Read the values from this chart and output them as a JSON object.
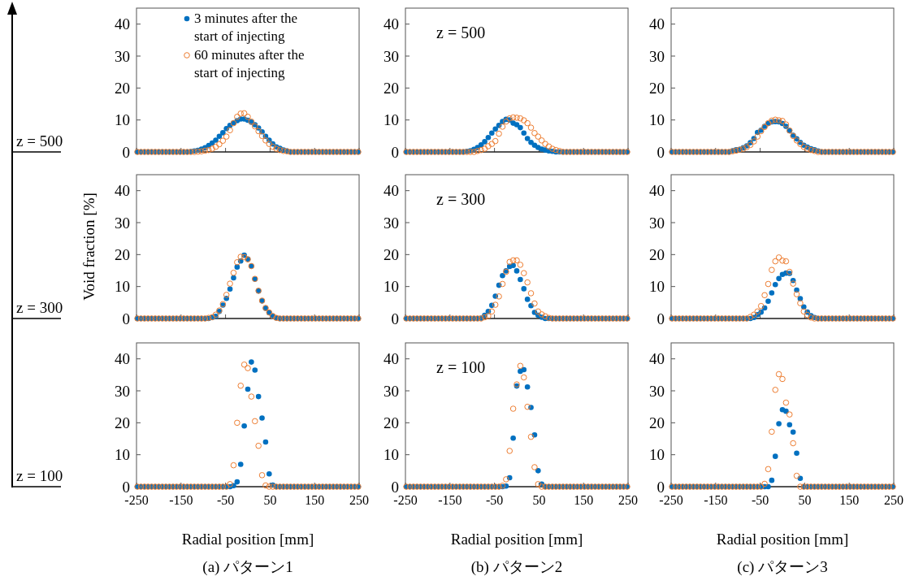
{
  "chart_data": [
    {
      "type": "scatter",
      "xlim": [
        -250,
        250
      ],
      "ylim": [
        0,
        45
      ],
      "xticks": [
        -250,
        -150,
        -50,
        50,
        150,
        250
      ],
      "yticks": [
        0,
        10,
        20,
        30,
        40
      ],
      "tick_labels": "y",
      "marker": "circle",
      "legend": "top",
      "annotations": [
        "z = 500"
      ],
      "x": [
        -248,
        -240,
        -232,
        -224,
        -216,
        -208,
        -200,
        -192,
        -184,
        -176,
        -168,
        -160,
        -152,
        -144,
        -136,
        -128,
        -120,
        -112,
        -104,
        -96,
        -88,
        -80,
        -72,
        -64,
        -56,
        -48,
        -40,
        -32,
        -24,
        -16,
        -8,
        0,
        8,
        16,
        24,
        32,
        40,
        48,
        56,
        64,
        72,
        80,
        88,
        96,
        104,
        112,
        120,
        128,
        136,
        144,
        152,
        160,
        168,
        176,
        184,
        192,
        200,
        208,
        216,
        224,
        232,
        240,
        248
      ],
      "series": [
        {
          "name": "3 minutes after the start of injecting",
          "color": "#0070c0",
          "values": [
            0,
            0,
            0,
            0,
            0,
            0,
            0,
            0,
            0,
            0,
            0,
            0,
            0,
            0,
            0,
            0.1,
            0.3,
            0.5,
            0.9,
            1.3,
            2.0,
            2.8,
            3.7,
            4.9,
            6.0,
            7.3,
            8.3,
            9.1,
            9.8,
            10.3,
            10.3,
            9.9,
            9.3,
            8.5,
            7.5,
            6.3,
            4.9,
            3.7,
            2.5,
            1.6,
            1.1,
            0.6,
            0.3,
            0,
            0,
            0,
            0,
            0,
            0,
            0,
            0,
            0,
            0,
            0,
            0,
            0,
            0,
            0,
            0,
            0,
            0,
            0,
            0
          ]
        },
        {
          "name": "60 minutes after the start of injecting",
          "color": "#ed7d31",
          "values": [
            0,
            0,
            0,
            0,
            0,
            0,
            0,
            0,
            0,
            0,
            0,
            0,
            0,
            0,
            0,
            0,
            0,
            0.1,
            0.2,
            0.4,
            0.6,
            1.0,
            1.6,
            2.4,
            3.5,
            4.8,
            6.8,
            9.0,
            11.0,
            12.0,
            12.1,
            11.0,
            9.5,
            8.0,
            6.5,
            5.0,
            3.6,
            2.5,
            1.6,
            1.0,
            0.6,
            0.3,
            0.2,
            0,
            0,
            0,
            0,
            0,
            0,
            0,
            0,
            0,
            0,
            0,
            0,
            0,
            0,
            0,
            0,
            0,
            0,
            0,
            0
          ]
        }
      ]
    },
    {
      "type": "scatter",
      "xlim": [
        -250,
        250
      ],
      "ylim": [
        0,
        45
      ],
      "xticks": [
        -250,
        -150,
        -50,
        50,
        150,
        250
      ],
      "yticks": [
        0,
        10,
        20,
        30,
        40
      ],
      "tick_labels": "y",
      "marker": "circle",
      "annotations": [
        "z = 500"
      ],
      "x": [
        -248,
        -240,
        -232,
        -224,
        -216,
        -208,
        -200,
        -192,
        -184,
        -176,
        -168,
        -160,
        -152,
        -144,
        -136,
        -128,
        -120,
        -112,
        -104,
        -96,
        -88,
        -80,
        -72,
        -64,
        -56,
        -48,
        -40,
        -32,
        -24,
        -16,
        -8,
        0,
        8,
        16,
        24,
        32,
        40,
        48,
        56,
        64,
        72,
        80,
        88,
        96,
        104,
        112,
        120,
        128,
        136,
        144,
        152,
        160,
        168,
        176,
        184,
        192,
        200,
        208,
        216,
        224,
        232,
        240,
        248
      ],
      "series": [
        {
          "color": "#0070c0",
          "values": [
            0,
            0,
            0,
            0,
            0,
            0,
            0,
            0,
            0,
            0,
            0,
            0,
            0,
            0,
            0,
            0,
            0,
            0.2,
            0.4,
            0.8,
            1.4,
            2.2,
            3.2,
            4.5,
            5.9,
            7.2,
            8.3,
            9.5,
            10.2,
            10.0,
            9.0,
            8.5,
            7.6,
            5.9,
            4.2,
            3.0,
            2.1,
            1.4,
            0.9,
            0.6,
            0.3,
            0.2,
            0,
            0,
            0,
            0,
            0,
            0,
            0,
            0,
            0,
            0,
            0,
            0,
            0,
            0,
            0,
            0,
            0,
            0,
            0,
            0,
            0
          ]
        },
        {
          "color": "#ed7d31",
          "values": [
            0,
            0,
            0,
            0,
            0,
            0,
            0,
            0,
            0,
            0,
            0,
            0,
            0,
            0,
            0,
            0,
            0,
            0,
            0,
            0,
            0.3,
            0.6,
            1.0,
            1.8,
            2.5,
            3.4,
            5.7,
            7.9,
            9.5,
            10.5,
            10.8,
            10.7,
            10.5,
            9.9,
            9.0,
            7.6,
            5.9,
            4.8,
            3.6,
            2.5,
            1.7,
            1.0,
            0.6,
            0.3,
            0,
            0,
            0,
            0,
            0,
            0,
            0,
            0,
            0,
            0,
            0,
            0,
            0,
            0,
            0,
            0,
            0,
            0,
            0
          ]
        }
      ]
    },
    {
      "type": "scatter",
      "xlim": [
        -250,
        250
      ],
      "ylim": [
        0,
        45
      ],
      "xticks": [
        -250,
        -150,
        -50,
        50,
        150,
        250
      ],
      "yticks": [
        0,
        10,
        20,
        30,
        40
      ],
      "tick_labels": "y",
      "marker": "circle",
      "x": [
        -248,
        -240,
        -232,
        -224,
        -216,
        -208,
        -200,
        -192,
        -184,
        -176,
        -168,
        -160,
        -152,
        -144,
        -136,
        -128,
        -120,
        -112,
        -104,
        -96,
        -88,
        -80,
        -72,
        -64,
        -56,
        -48,
        -40,
        -32,
        -24,
        -16,
        -8,
        0,
        8,
        16,
        24,
        32,
        40,
        48,
        56,
        64,
        72,
        80,
        88,
        96,
        104,
        112,
        120,
        128,
        136,
        144,
        152,
        160,
        168,
        176,
        184,
        192,
        200,
        208,
        216,
        224,
        232,
        240,
        248
      ],
      "series": [
        {
          "color": "#0070c0",
          "values": [
            0,
            0,
            0,
            0,
            0,
            0,
            0,
            0,
            0,
            0,
            0,
            0,
            0,
            0,
            0,
            0,
            0,
            0.4,
            0.7,
            0.8,
            1.3,
            1.9,
            2.9,
            4.2,
            6.1,
            6.8,
            8.0,
            8.9,
            9.4,
            9.5,
            9.4,
            8.9,
            8.0,
            6.6,
            5.2,
            4.1,
            3.0,
            2.1,
            1.5,
            1.0,
            0.7,
            0.3,
            0,
            0,
            0,
            0,
            0,
            0,
            0,
            0,
            0,
            0,
            0,
            0,
            0,
            0,
            0,
            0,
            0,
            0,
            0,
            0,
            0
          ]
        },
        {
          "color": "#ed7d31",
          "values": [
            0,
            0,
            0,
            0,
            0,
            0,
            0,
            0,
            0,
            0,
            0,
            0,
            0,
            0,
            0,
            0,
            0,
            0.2,
            0.4,
            0.7,
            1.0,
            1.5,
            2.2,
            3.3,
            4.8,
            6.5,
            7.8,
            9.0,
            9.8,
            10.1,
            9.9,
            9.7,
            8.6,
            6.7,
            5.0,
            3.6,
            2.5,
            1.6,
            1.0,
            0.6,
            0.3,
            0,
            0,
            0,
            0,
            0,
            0,
            0,
            0,
            0,
            0,
            0,
            0,
            0,
            0,
            0,
            0,
            0,
            0,
            0,
            0,
            0,
            0
          ]
        }
      ]
    },
    {
      "type": "scatter",
      "xlim": [
        -250,
        250
      ],
      "ylim": [
        0,
        45
      ],
      "xticks": [
        -250,
        -150,
        -50,
        50,
        150,
        250
      ],
      "yticks": [
        0,
        10,
        20,
        30,
        40
      ],
      "tick_labels": "y",
      "marker": "circle",
      "ylabel": "Void fraction [%]",
      "annotations": [
        "z = 300"
      ],
      "x": [
        -248,
        -240,
        -232,
        -224,
        -216,
        -208,
        -200,
        -192,
        -184,
        -176,
        -168,
        -160,
        -152,
        -144,
        -136,
        -128,
        -120,
        -112,
        -104,
        -96,
        -88,
        -80,
        -72,
        -64,
        -56,
        -48,
        -40,
        -32,
        -24,
        -16,
        -8,
        0,
        8,
        16,
        24,
        32,
        40,
        48,
        56,
        64,
        72,
        80,
        88,
        96,
        104,
        112,
        120,
        128,
        136,
        144,
        152,
        160,
        168,
        176,
        184,
        192,
        200,
        208,
        216,
        224,
        232,
        240,
        248
      ],
      "series": [
        {
          "color": "#0070c0",
          "values": [
            0,
            0,
            0,
            0,
            0,
            0,
            0,
            0,
            0,
            0,
            0,
            0,
            0,
            0,
            0,
            0,
            0,
            0,
            0,
            0,
            0,
            0.3,
            0.7,
            2.2,
            4.2,
            6.3,
            9.2,
            12.7,
            16.1,
            18.0,
            19.8,
            18.6,
            16.4,
            12.3,
            8.6,
            5.5,
            3.2,
            1.8,
            0.7,
            0.2,
            0,
            0,
            0,
            0,
            0,
            0,
            0,
            0,
            0,
            0,
            0,
            0,
            0,
            0,
            0,
            0,
            0,
            0,
            0,
            0,
            0,
            0,
            0
          ]
        },
        {
          "color": "#ed7d31",
          "values": [
            0,
            0,
            0,
            0,
            0,
            0,
            0,
            0,
            0,
            0,
            0,
            0,
            0,
            0,
            0,
            0,
            0,
            0,
            0,
            0,
            0.2,
            0.4,
            1.2,
            2.5,
            4.5,
            7.4,
            10.9,
            14.3,
            17.6,
            19.3,
            19.2,
            18.5,
            16.4,
            12.4,
            8.7,
            5.6,
            3.3,
            1.9,
            0.8,
            0.2,
            0,
            0,
            0,
            0,
            0,
            0,
            0,
            0,
            0,
            0,
            0,
            0,
            0,
            0,
            0,
            0,
            0,
            0,
            0,
            0,
            0,
            0,
            0
          ]
        }
      ]
    },
    {
      "type": "scatter",
      "xlim": [
        -250,
        250
      ],
      "ylim": [
        0,
        45
      ],
      "xticks": [
        -250,
        -150,
        -50,
        50,
        150,
        250
      ],
      "yticks": [
        0,
        10,
        20,
        30,
        40
      ],
      "tick_labels": "y",
      "marker": "circle",
      "annotations": [
        "z = 300"
      ],
      "x": [
        -248,
        -240,
        -232,
        -224,
        -216,
        -208,
        -200,
        -192,
        -184,
        -176,
        -168,
        -160,
        -152,
        -144,
        -136,
        -128,
        -120,
        -112,
        -104,
        -96,
        -88,
        -80,
        -72,
        -64,
        -56,
        -48,
        -40,
        -32,
        -24,
        -16,
        -8,
        0,
        8,
        16,
        24,
        32,
        40,
        48,
        56,
        64,
        72,
        80,
        88,
        96,
        104,
        112,
        120,
        128,
        136,
        144,
        152,
        160,
        168,
        176,
        184,
        192,
        200,
        208,
        216,
        224,
        232,
        240,
        248
      ],
      "series": [
        {
          "color": "#0070c0",
          "values": [
            0,
            0,
            0,
            0,
            0,
            0,
            0,
            0,
            0,
            0,
            0,
            0,
            0,
            0,
            0,
            0,
            0,
            0,
            0,
            0,
            0,
            0.1,
            1.0,
            2.2,
            4.1,
            7.0,
            10.4,
            13.4,
            14.9,
            16.3,
            16.6,
            14.9,
            12.2,
            9.3,
            6.0,
            4.0,
            1.9,
            1.0,
            0.4,
            0,
            0,
            0,
            0,
            0,
            0,
            0,
            0,
            0,
            0,
            0,
            0,
            0,
            0,
            0,
            0,
            0,
            0,
            0,
            0,
            0,
            0,
            0,
            0
          ]
        },
        {
          "color": "#ed7d31",
          "values": [
            0,
            0,
            0,
            0,
            0,
            0,
            0,
            0,
            0,
            0,
            0,
            0,
            0,
            0,
            0,
            0,
            0,
            0,
            0,
            0,
            0,
            0,
            0.4,
            0.8,
            2.2,
            4.3,
            6.9,
            10.8,
            14.6,
            17.7,
            18.2,
            18.2,
            16.8,
            14.2,
            11.3,
            7.9,
            4.7,
            2.2,
            1.3,
            0.7,
            0.2,
            0,
            0,
            0,
            0,
            0,
            0,
            0,
            0,
            0,
            0,
            0,
            0,
            0,
            0,
            0,
            0,
            0,
            0,
            0,
            0,
            0,
            0
          ]
        }
      ]
    },
    {
      "type": "scatter",
      "xlim": [
        -250,
        250
      ],
      "ylim": [
        0,
        45
      ],
      "xticks": [
        -250,
        -150,
        -50,
        50,
        150,
        250
      ],
      "yticks": [
        0,
        10,
        20,
        30,
        40
      ],
      "tick_labels": "y",
      "marker": "circle",
      "x": [
        -248,
        -240,
        -232,
        -224,
        -216,
        -208,
        -200,
        -192,
        -184,
        -176,
        -168,
        -160,
        -152,
        -144,
        -136,
        -128,
        -120,
        -112,
        -104,
        -96,
        -88,
        -80,
        -72,
        -64,
        -56,
        -48,
        -40,
        -32,
        -24,
        -16,
        -8,
        0,
        8,
        16,
        24,
        32,
        40,
        48,
        56,
        64,
        72,
        80,
        88,
        96,
        104,
        112,
        120,
        128,
        136,
        144,
        152,
        160,
        168,
        176,
        184,
        192,
        200,
        208,
        216,
        224,
        232,
        240,
        248
      ],
      "series": [
        {
          "color": "#0070c0",
          "values": [
            0,
            0,
            0,
            0,
            0,
            0,
            0,
            0,
            0,
            0,
            0,
            0,
            0,
            0,
            0,
            0,
            0,
            0,
            0,
            0,
            0,
            0,
            0,
            0.3,
            1.2,
            2.0,
            3.3,
            5.4,
            8.0,
            10.6,
            12.5,
            13.8,
            14.2,
            14.1,
            11.9,
            8.9,
            6.2,
            3.6,
            2.0,
            0.9,
            0.3,
            0,
            0,
            0,
            0,
            0,
            0,
            0,
            0,
            0,
            0,
            0,
            0,
            0,
            0,
            0,
            0,
            0,
            0,
            0,
            0,
            0,
            0
          ]
        },
        {
          "color": "#ed7d31",
          "values": [
            0,
            0,
            0,
            0,
            0,
            0,
            0,
            0,
            0,
            0,
            0,
            0,
            0,
            0,
            0,
            0,
            0,
            0,
            0,
            0,
            0,
            0,
            0.5,
            1.2,
            2.2,
            3.9,
            7.3,
            10.8,
            15.2,
            17.9,
            19.1,
            18.1,
            17.9,
            14.6,
            10.9,
            7.6,
            4.8,
            2.2,
            1.1,
            0.3,
            0,
            0,
            0,
            0,
            0,
            0,
            0,
            0,
            0,
            0,
            0,
            0,
            0,
            0,
            0,
            0,
            0,
            0,
            0,
            0,
            0,
            0,
            0
          ]
        }
      ]
    },
    {
      "type": "scatter",
      "xlim": [
        -250,
        250
      ],
      "ylim": [
        0,
        45
      ],
      "xticks": [
        -250,
        -150,
        -50,
        50,
        150,
        250
      ],
      "yticks": [
        0,
        10,
        20,
        30,
        40
      ],
      "marker": "circle",
      "xlabel": "Radial position [mm]",
      "title": "(a) パターン1",
      "annotations": [
        "z = 100"
      ],
      "x": [
        -248,
        -240,
        -232,
        -224,
        -216,
        -208,
        -200,
        -192,
        -184,
        -176,
        -168,
        -160,
        -152,
        -144,
        -136,
        -128,
        -120,
        -112,
        -104,
        -96,
        -88,
        -80,
        -72,
        -64,
        -56,
        -48,
        -40,
        -32,
        -24,
        -16,
        -8,
        0,
        8,
        16,
        24,
        32,
        40,
        48,
        56,
        64,
        72,
        80,
        88,
        96,
        104,
        112,
        120,
        128,
        136,
        144,
        152,
        160,
        168,
        176,
        184,
        192,
        200,
        208,
        216,
        224,
        232,
        240,
        248
      ],
      "series": [
        {
          "color": "#0070c0",
          "values": [
            0,
            0,
            0,
            0,
            0,
            0,
            0,
            0,
            0,
            0,
            0,
            0,
            0,
            0,
            0,
            0,
            0,
            0,
            0,
            0,
            0,
            0,
            0,
            0,
            0,
            0,
            0,
            0.3,
            1.5,
            7,
            19,
            30.5,
            39,
            36.5,
            28.2,
            21.5,
            14,
            4,
            0.5,
            0,
            0,
            0,
            0,
            0,
            0,
            0,
            0,
            0,
            0,
            0,
            0,
            0,
            0,
            0,
            0,
            0,
            0,
            0,
            0,
            0,
            0,
            0,
            0
          ]
        },
        {
          "color": "#ed7d31",
          "values": [
            0,
            0,
            0,
            0,
            0,
            0,
            0,
            0,
            0,
            0,
            0,
            0,
            0,
            0,
            0,
            0,
            0,
            0,
            0,
            0,
            0,
            0,
            0,
            0,
            0,
            0,
            0.8,
            6.7,
            20,
            31.6,
            38.2,
            37.1,
            28.2,
            20.5,
            12.8,
            3.6,
            0.4,
            0,
            0,
            0,
            0,
            0,
            0,
            0,
            0,
            0,
            0,
            0,
            0,
            0,
            0,
            0,
            0,
            0,
            0,
            0,
            0,
            0,
            0,
            0,
            0,
            0,
            0
          ]
        }
      ]
    },
    {
      "type": "scatter",
      "xlim": [
        -250,
        250
      ],
      "ylim": [
        0,
        45
      ],
      "xticks": [
        -250,
        -150,
        -50,
        50,
        150,
        250
      ],
      "yticks": [
        0,
        10,
        20,
        30,
        40
      ],
      "marker": "circle",
      "xlabel": "Radial position [mm]",
      "title": "(b) パターン2",
      "annotations": [
        "z = 100"
      ],
      "x": [
        -248,
        -240,
        -232,
        -224,
        -216,
        -208,
        -200,
        -192,
        -184,
        -176,
        -168,
        -160,
        -152,
        -144,
        -136,
        -128,
        -120,
        -112,
        -104,
        -96,
        -88,
        -80,
        -72,
        -64,
        -56,
        -48,
        -40,
        -32,
        -24,
        -16,
        -8,
        0,
        8,
        16,
        24,
        32,
        40,
        48,
        56,
        64,
        72,
        80,
        88,
        96,
        104,
        112,
        120,
        128,
        136,
        144,
        152,
        160,
        168,
        176,
        184,
        192,
        200,
        208,
        216,
        224,
        232,
        240,
        248
      ],
      "series": [
        {
          "color": "#0070c0",
          "values": [
            0,
            0,
            0,
            0,
            0,
            0,
            0,
            0,
            0,
            0,
            0,
            0,
            0,
            0,
            0,
            0,
            0,
            0,
            0,
            0,
            0,
            0,
            0,
            0,
            0,
            0,
            0,
            0,
            0.2,
            2.8,
            15.2,
            31.5,
            36.1,
            36.6,
            31.2,
            24.8,
            16.2,
            5,
            0.8,
            0,
            0,
            0,
            0,
            0,
            0,
            0,
            0,
            0,
            0,
            0,
            0,
            0,
            0,
            0,
            0,
            0,
            0,
            0,
            0,
            0,
            0,
            0,
            0
          ]
        },
        {
          "color": "#ed7d31",
          "values": [
            0,
            0,
            0,
            0,
            0,
            0,
            0,
            0,
            0,
            0,
            0,
            0,
            0,
            0,
            0,
            0,
            0,
            0,
            0,
            0,
            0,
            0,
            0,
            0,
            0,
            0,
            0,
            0.3,
            2.3,
            11.2,
            24.4,
            32,
            37.8,
            34.2,
            25,
            15.6,
            6.1,
            0.8,
            0,
            0,
            0,
            0,
            0,
            0,
            0,
            0,
            0,
            0,
            0,
            0,
            0,
            0,
            0,
            0,
            0,
            0,
            0,
            0,
            0,
            0,
            0,
            0,
            0
          ]
        }
      ]
    },
    {
      "type": "scatter",
      "xlim": [
        -250,
        250
      ],
      "ylim": [
        0,
        45
      ],
      "xticks": [
        -250,
        -150,
        -50,
        50,
        150,
        250
      ],
      "yticks": [
        0,
        10,
        20,
        30,
        40
      ],
      "marker": "circle",
      "xlabel": "Radial position [mm]",
      "title": "(c) パターン3",
      "x": [
        -248,
        -240,
        -232,
        -224,
        -216,
        -208,
        -200,
        -192,
        -184,
        -176,
        -168,
        -160,
        -152,
        -144,
        -136,
        -128,
        -120,
        -112,
        -104,
        -96,
        -88,
        -80,
        -72,
        -64,
        -56,
        -48,
        -40,
        -32,
        -24,
        -16,
        -8,
        0,
        8,
        16,
        24,
        32,
        40,
        48,
        56,
        64,
        72,
        80,
        88,
        96,
        104,
        112,
        120,
        128,
        136,
        144,
        152,
        160,
        168,
        176,
        184,
        192,
        200,
        208,
        216,
        224,
        232,
        240,
        248
      ],
      "series": [
        {
          "color": "#0070c0",
          "values": [
            0,
            0,
            0,
            0,
            0,
            0,
            0,
            0,
            0,
            0,
            0,
            0,
            0,
            0,
            0,
            0,
            0,
            0,
            0,
            0,
            0,
            0,
            0,
            0,
            0,
            0,
            0,
            0,
            2.0,
            9.5,
            19.7,
            24.1,
            23.6,
            19.4,
            17.1,
            10.5,
            2.6,
            0,
            0,
            0,
            0,
            0,
            0,
            0,
            0,
            0,
            0,
            0,
            0,
            0,
            0,
            0,
            0,
            0,
            0,
            0,
            0,
            0,
            0,
            0,
            0,
            0,
            0
          ]
        },
        {
          "color": "#ed7d31",
          "values": [
            0,
            0,
            0,
            0,
            0,
            0,
            0,
            0,
            0,
            0,
            0,
            0,
            0,
            0,
            0,
            0,
            0,
            0,
            0,
            0,
            0,
            0,
            0,
            0,
            0,
            0,
            0.9,
            5.5,
            17.2,
            30.3,
            35.2,
            33.7,
            26.3,
            22.6,
            13.6,
            3.4,
            0,
            0,
            0,
            0,
            0,
            0,
            0,
            0,
            0,
            0,
            0,
            0,
            0,
            0,
            0,
            0,
            0,
            0,
            0,
            0,
            0,
            0,
            0,
            0,
            0,
            0,
            0
          ]
        }
      ]
    }
  ]
}
